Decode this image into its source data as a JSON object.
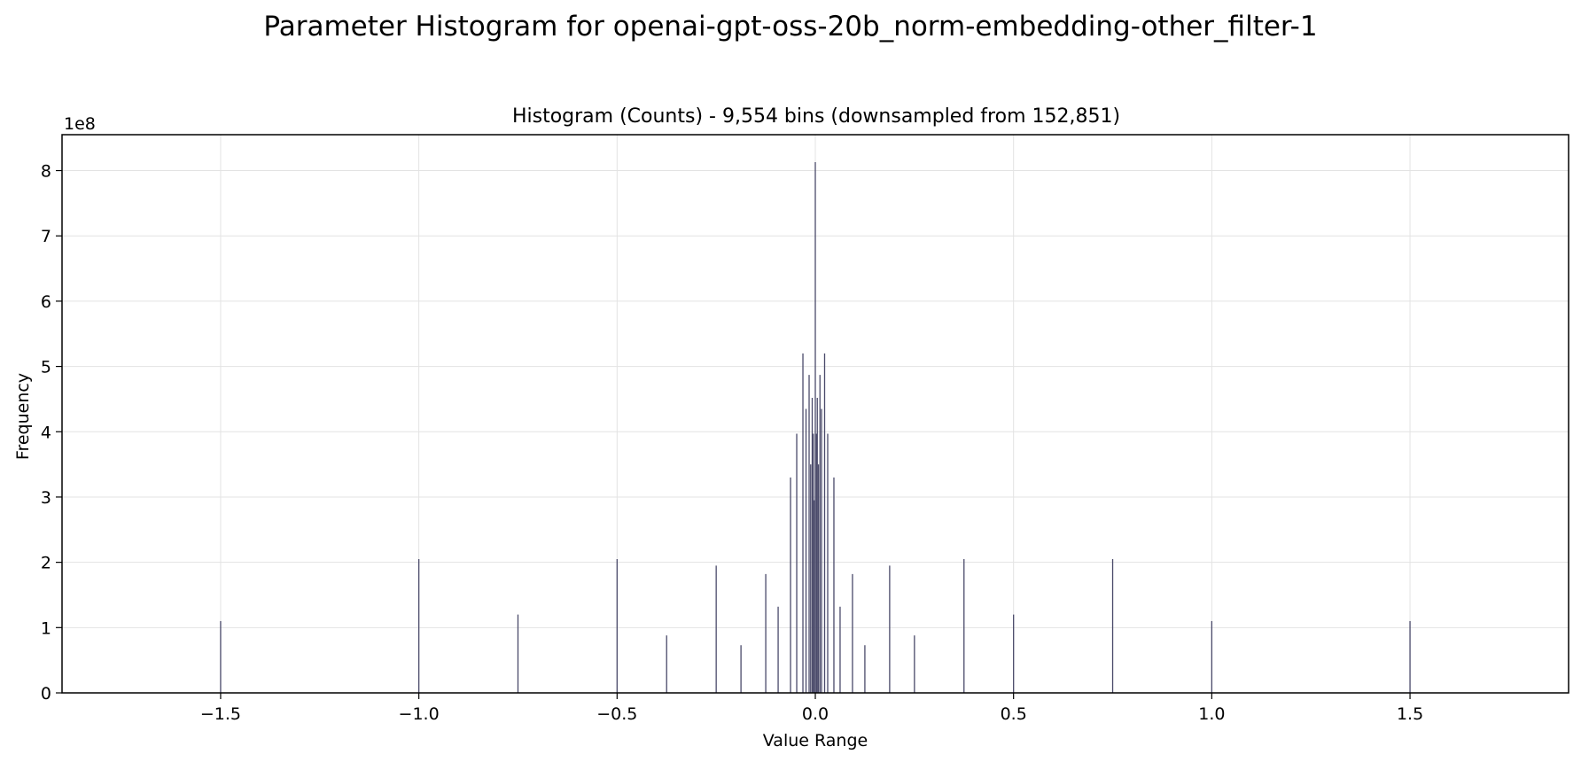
{
  "figure": {
    "suptitle": "Parameter Histogram for openai-gpt-oss-20b_norm-embedding-other_filter-1"
  },
  "chart_data": {
    "type": "bar",
    "title": "Histogram (Counts) - 9,554 bins (downsampled from 152,851)",
    "xlabel": "Value Range",
    "ylabel": "Frequency",
    "y_offset_label": "1e8",
    "xlim": [
      -1.9,
      1.9
    ],
    "ylim": [
      0,
      855000000
    ],
    "grid": true,
    "bar_color": "#4a4a6a",
    "x_ticks": [
      -1.5,
      -1.0,
      -0.5,
      0.0,
      0.5,
      1.0,
      1.5
    ],
    "x_tick_labels": [
      "−1.5",
      "−1.0",
      "−0.5",
      "0.0",
      "0.5",
      "1.0",
      "1.5"
    ],
    "y_ticks": [
      0,
      100000000,
      200000000,
      300000000,
      400000000,
      500000000,
      600000000,
      700000000,
      800000000
    ],
    "y_tick_labels": [
      "0",
      "1",
      "2",
      "3",
      "4",
      "5",
      "6",
      "7",
      "8"
    ],
    "x": [
      -1.5,
      -1.0,
      -0.75,
      -0.5,
      -0.375,
      -0.25,
      -0.1875,
      -0.125,
      -0.09375,
      -0.0625,
      -0.046875,
      -0.03125,
      -0.0234375,
      -0.015625,
      -0.01171875,
      -0.0078125,
      -0.005,
      -0.003,
      0.0,
      0.003,
      0.005,
      0.0078125,
      0.01171875,
      0.015625,
      0.0234375,
      0.03125,
      0.046875,
      0.0625,
      0.09375,
      0.125,
      0.1875,
      0.25,
      0.375,
      0.5,
      0.75,
      1.0,
      1.5
    ],
    "values": [
      110000000,
      205000000,
      120000000,
      205000000,
      88000000,
      195000000,
      73000000,
      182000000,
      132000000,
      330000000,
      397000000,
      520000000,
      435000000,
      487000000,
      350000000,
      452000000,
      397000000,
      295000000,
      813000000,
      397000000,
      452000000,
      350000000,
      487000000,
      435000000,
      520000000,
      397000000,
      330000000,
      132000000,
      182000000,
      73000000,
      195000000,
      88000000,
      205000000,
      120000000,
      205000000,
      110000000,
      110000000
    ]
  }
}
